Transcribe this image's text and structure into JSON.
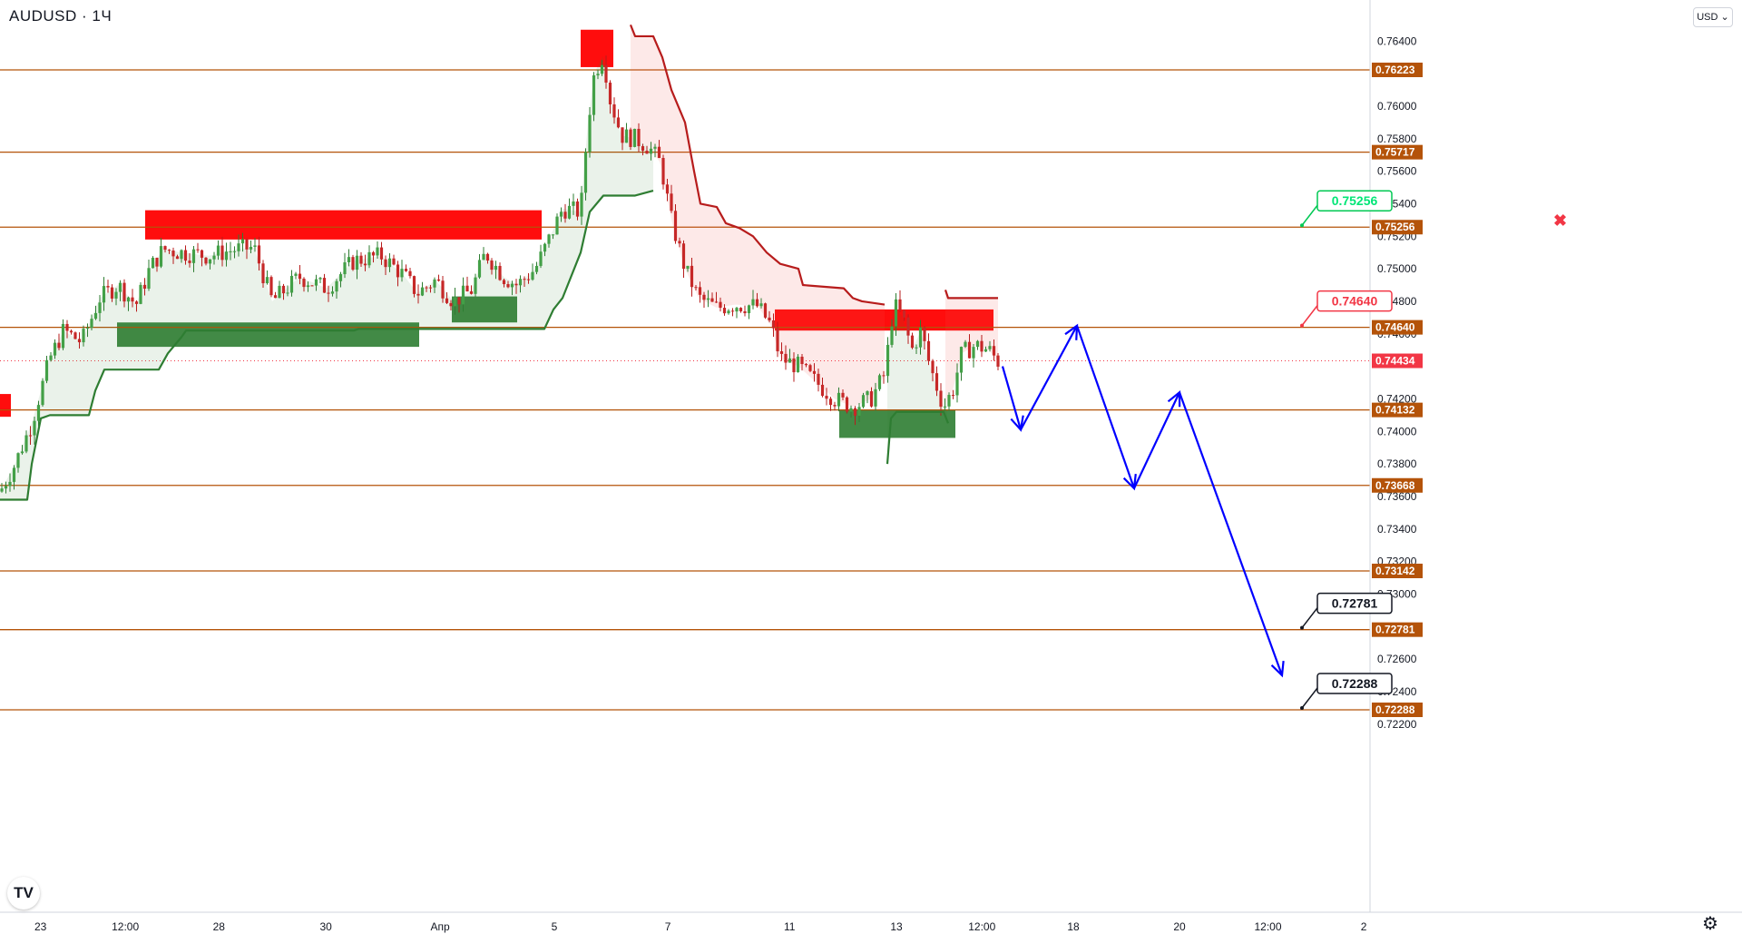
{
  "header": {
    "symbol": "AUDUSD · 1Ч",
    "currency": "USD"
  },
  "logo_text": "TV",
  "colors": {
    "level_line": "#b45309",
    "level_tag": "#b45309",
    "price_tag": "#f23645",
    "bull": "#26a69a",
    "bear": "#ef5350",
    "trail_up": "#2e7d32",
    "trail_down": "#b71c1c",
    "supply_zone": "#ff0000",
    "demand_zone": "#2e7d32",
    "forecast": "#0000ff"
  },
  "chart_data": {
    "type": "candlestick",
    "symbol": "AUDUSD",
    "timeframe": "1Ч",
    "ylim": [
      0.7208,
      0.7662
    ],
    "x_ticks": [
      "23",
      "12:00",
      "28",
      "30",
      "Апр",
      "5",
      "7",
      "11",
      "13",
      "12:00",
      "18",
      "20",
      "12:00",
      "2"
    ],
    "y_ticks": [
      "0.76400",
      "0.76000",
      "0.75800",
      "0.75600",
      "0.75400",
      "0.75200",
      "0.75000",
      "0.74800",
      "0.74600",
      "0.74200",
      "0.74000",
      "0.73800",
      "0.73600",
      "0.73400",
      "0.73200",
      "0.73000",
      "0.72600",
      "0.72400",
      "0.72200"
    ],
    "levels": [
      0.76223,
      0.75717,
      0.75256,
      0.7464,
      0.74132,
      0.73668,
      0.73142,
      0.72781,
      0.72288
    ],
    "level_labels": [
      "0.76223",
      "0.75717",
      "0.75256",
      "0.74640",
      "0.74132",
      "0.73668",
      "0.73142",
      "0.72781",
      "0.72288"
    ],
    "current_price": 0.74434,
    "current_price_label": "0.74434",
    "callouts": [
      {
        "label": "0.75256",
        "value": 0.75256,
        "color": "#00e676",
        "border": "#00c853"
      },
      {
        "label": "0.74640",
        "value": 0.7464,
        "color": "#f23645",
        "border": "#f23645"
      },
      {
        "label": "0.72781",
        "value": 0.72781,
        "color": "#131722",
        "border": "#131722"
      },
      {
        "label": "0.72288",
        "value": 0.72288,
        "color": "#131722",
        "border": "#131722"
      }
    ],
    "price_path": [
      [
        0,
        0.7363
      ],
      [
        15,
        0.7378
      ],
      [
        35,
        0.7405
      ],
      [
        55,
        0.7445
      ],
      [
        70,
        0.7462
      ],
      [
        90,
        0.7455
      ],
      [
        110,
        0.7482
      ],
      [
        130,
        0.749
      ],
      [
        150,
        0.7478
      ],
      [
        165,
        0.75
      ],
      [
        180,
        0.7512
      ],
      [
        200,
        0.751
      ],
      [
        230,
        0.7508
      ],
      [
        260,
        0.7512
      ],
      [
        280,
        0.7513
      ],
      [
        300,
        0.748
      ],
      [
        330,
        0.7495
      ],
      [
        360,
        0.7488
      ],
      [
        390,
        0.7505
      ],
      [
        420,
        0.7508
      ],
      [
        445,
        0.7496
      ],
      [
        460,
        0.7485
      ],
      [
        480,
        0.7493
      ],
      [
        500,
        0.748
      ],
      [
        520,
        0.7487
      ],
      [
        535,
        0.751
      ],
      [
        555,
        0.7495
      ],
      [
        570,
        0.749
      ],
      [
        590,
        0.75
      ],
      [
        605,
        0.7518
      ],
      [
        620,
        0.7537
      ],
      [
        640,
        0.7535
      ],
      [
        648,
        0.759
      ],
      [
        655,
        0.762
      ],
      [
        665,
        0.7632
      ],
      [
        672,
        0.7605
      ],
      [
        685,
        0.7582
      ],
      [
        700,
        0.758
      ],
      [
        715,
        0.7575
      ],
      [
        728,
        0.7565
      ],
      [
        740,
        0.753
      ],
      [
        755,
        0.75
      ],
      [
        770,
        0.7482
      ],
      [
        790,
        0.7476
      ],
      [
        810,
        0.7478
      ],
      [
        835,
        0.7477
      ],
      [
        850,
        0.7465
      ],
      [
        860,
        0.7445
      ],
      [
        880,
        0.744
      ],
      [
        900,
        0.743
      ],
      [
        920,
        0.742
      ],
      [
        940,
        0.7415
      ],
      [
        960,
        0.742
      ],
      [
        975,
        0.7435
      ],
      [
        985,
        0.7478
      ],
      [
        995,
        0.747
      ],
      [
        1005,
        0.745
      ],
      [
        1015,
        0.7462
      ],
      [
        1025,
        0.744
      ],
      [
        1040,
        0.7415
      ],
      [
        1050,
        0.7425
      ],
      [
        1060,
        0.7448
      ],
      [
        1075,
        0.7453
      ],
      [
        1090,
        0.745
      ],
      [
        1100,
        0.7443
      ]
    ],
    "trail_up_path": [
      [
        0,
        0.7358
      ],
      [
        30,
        0.7358
      ],
      [
        35,
        0.738
      ],
      [
        45,
        0.7408
      ],
      [
        55,
        0.741
      ],
      [
        98,
        0.741
      ],
      [
        105,
        0.7425
      ],
      [
        115,
        0.7438
      ],
      [
        175,
        0.7438
      ],
      [
        185,
        0.7448
      ],
      [
        200,
        0.7458
      ],
      [
        205,
        0.7462
      ],
      [
        390,
        0.7462
      ],
      [
        395,
        0.7463
      ],
      [
        600,
        0.7463
      ],
      [
        610,
        0.7475
      ],
      [
        620,
        0.7482
      ],
      [
        640,
        0.751
      ],
      [
        650,
        0.7535
      ],
      [
        665,
        0.7545
      ],
      [
        700,
        0.7545
      ],
      [
        720,
        0.7548
      ]
    ],
    "trail_down_path": [
      [
        695,
        0.765
      ],
      [
        700,
        0.7643
      ],
      [
        720,
        0.7643
      ],
      [
        730,
        0.763
      ],
      [
        740,
        0.761
      ],
      [
        755,
        0.759
      ],
      [
        765,
        0.756
      ],
      [
        772,
        0.754
      ],
      [
        790,
        0.7538
      ],
      [
        800,
        0.7528
      ],
      [
        815,
        0.7525
      ],
      [
        830,
        0.752
      ],
      [
        845,
        0.751
      ],
      [
        860,
        0.7503
      ],
      [
        880,
        0.75
      ],
      [
        885,
        0.749
      ],
      [
        930,
        0.7488
      ],
      [
        940,
        0.7482
      ],
      [
        950,
        0.748
      ],
      [
        975,
        0.7478
      ]
    ],
    "trail_up2_path": [
      [
        978,
        0.738
      ],
      [
        982,
        0.7408
      ],
      [
        988,
        0.7412
      ],
      [
        1040,
        0.7412
      ],
      [
        1045,
        0.7405
      ]
    ],
    "trail_down2_path": [
      [
        1042,
        0.7487
      ],
      [
        1045,
        0.7482
      ],
      [
        1100,
        0.7482
      ]
    ],
    "zones": [
      {
        "kind": "supply",
        "x0": 0,
        "x1": 12,
        "top": 0.7423,
        "bottom": 0.7409
      },
      {
        "kind": "supply",
        "x0": 160,
        "x1": 597,
        "top": 0.7536,
        "bottom": 0.7518
      },
      {
        "kind": "supply",
        "x0": 640,
        "x1": 676,
        "top": 0.7647,
        "bottom": 0.7624
      },
      {
        "kind": "supply",
        "x0": 854,
        "x1": 1095,
        "top": 0.7475,
        "bottom": 0.7462
      },
      {
        "kind": "demand",
        "x0": 129,
        "x1": 462,
        "top": 0.7467,
        "bottom": 0.7452
      },
      {
        "kind": "demand",
        "x0": 498,
        "x1": 570,
        "top": 0.7483,
        "bottom": 0.7467
      },
      {
        "kind": "demand",
        "x0": 925,
        "x1": 1053,
        "top": 0.7413,
        "bottom": 0.7396
      }
    ],
    "forecast_path": [
      [
        1105,
        0.744
      ],
      [
        1125,
        0.7401
      ],
      [
        1187,
        0.7465
      ],
      [
        1250,
        0.7365
      ],
      [
        1300,
        0.7424
      ],
      [
        1413,
        0.725
      ]
    ]
  }
}
